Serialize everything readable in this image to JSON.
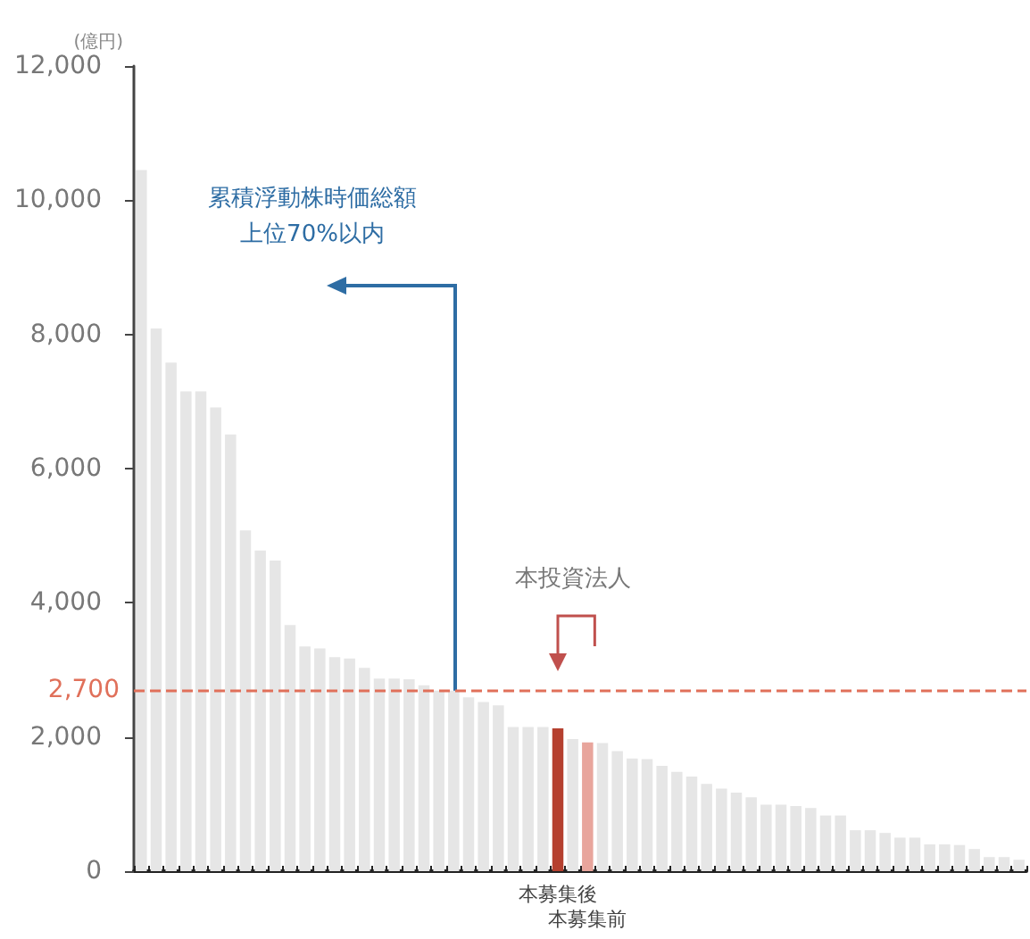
{
  "chart_data": {
    "type": "bar",
    "ylabel": "(億円)",
    "categories": [
      null,
      null,
      null,
      null,
      null,
      null,
      null,
      null,
      null,
      null,
      null,
      null,
      null,
      null,
      null,
      null,
      null,
      null,
      null,
      null,
      null,
      null,
      null,
      null,
      null,
      null,
      null,
      null,
      "本募集後",
      null,
      "本募集前",
      null,
      null,
      null,
      null,
      null,
      null,
      null,
      null,
      null,
      null,
      null,
      null,
      null,
      null,
      null,
      null,
      null,
      null,
      null,
      null,
      null,
      null,
      null,
      null,
      null,
      null,
      null,
      null,
      null
    ],
    "values": [
      10450,
      8090,
      7580,
      7150,
      7150,
      6910,
      6510,
      5080,
      4780,
      4630,
      3670,
      3350,
      3320,
      3190,
      3170,
      3030,
      2870,
      2870,
      2860,
      2770,
      2690,
      2690,
      2590,
      2520,
      2470,
      2150,
      2150,
      2150,
      2130,
      1970,
      1920,
      1910,
      1790,
      1680,
      1670,
      1570,
      1480,
      1410,
      1300,
      1230,
      1170,
      1100,
      990,
      990,
      970,
      940,
      830,
      830,
      610,
      610,
      570,
      500,
      500,
      400,
      400,
      390,
      330,
      210,
      210,
      170
    ],
    "colors": [
      "#e6e6e6",
      "#e6e6e6",
      "#e6e6e6",
      "#e6e6e6",
      "#e6e6e6",
      "#e6e6e6",
      "#e6e6e6",
      "#e6e6e6",
      "#e6e6e6",
      "#e6e6e6",
      "#e6e6e6",
      "#e6e6e6",
      "#e6e6e6",
      "#e6e6e6",
      "#e6e6e6",
      "#e6e6e6",
      "#e6e6e6",
      "#e6e6e6",
      "#e6e6e6",
      "#e6e6e6",
      "#e6e6e6",
      "#e6e6e6",
      "#e6e6e6",
      "#e6e6e6",
      "#e6e6e6",
      "#e6e6e6",
      "#e6e6e6",
      "#e6e6e6",
      "#b5402f",
      "#e6e6e6",
      "#e8a59c",
      "#e6e6e6",
      "#e6e6e6",
      "#e6e6e6",
      "#e6e6e6",
      "#e6e6e6",
      "#e6e6e6",
      "#e6e6e6",
      "#e6e6e6",
      "#e6e6e6",
      "#e6e6e6",
      "#e6e6e6",
      "#e6e6e6",
      "#e6e6e6",
      "#e6e6e6",
      "#e6e6e6",
      "#e6e6e6",
      "#e6e6e6",
      "#e6e6e6",
      "#e6e6e6",
      "#e6e6e6",
      "#e6e6e6",
      "#e6e6e6",
      "#e6e6e6",
      "#e6e6e6",
      "#e6e6e6",
      "#e6e6e6",
      "#e6e6e6",
      "#e6e6e6",
      "#e6e6e6"
    ],
    "ylim": [
      0,
      12000
    ],
    "yticks": [
      {
        "value": 0,
        "label": "0"
      },
      {
        "value": 2000,
        "label": "2,000"
      },
      {
        "value": 4000,
        "label": "4,000"
      },
      {
        "value": 6000,
        "label": "6,000"
      },
      {
        "value": 8000,
        "label": "8,000"
      },
      {
        "value": 10000,
        "label": "10,000"
      },
      {
        "value": 12000,
        "label": "12,000"
      }
    ],
    "ref_lines": [
      {
        "axis": "y",
        "value": 2700,
        "label": "2,700",
        "color": "#e0705a",
        "line_style": "dashed"
      }
    ],
    "annotations": [
      "累積浮動株時価総額",
      "上位70%以内",
      "本投資法人"
    ]
  }
}
